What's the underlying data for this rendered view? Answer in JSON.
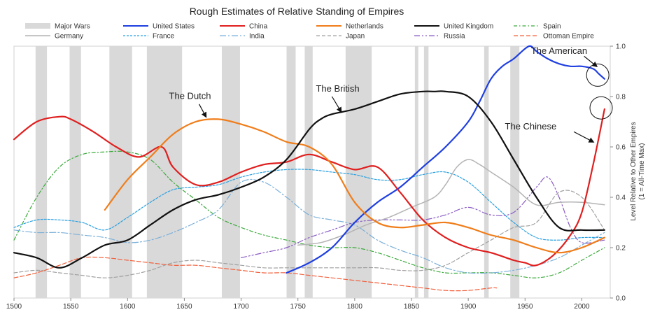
{
  "chart_data": {
    "type": "line",
    "title": "Rough Estimates of Relative Standing of Empires",
    "ylabel_line1": "Level Relative to Other Empires",
    "ylabel_line2": "(1 = All-Time Max)",
    "xlim": [
      1500,
      2025
    ],
    "ylim": [
      0,
      1.0
    ],
    "y_axis_side": "right",
    "grid": false,
    "legend_position": "top",
    "x_ticks": [
      1500,
      1550,
      1600,
      1650,
      1700,
      1750,
      1800,
      1850,
      1900,
      1950,
      2000
    ],
    "x_tick_labels": [
      "1500",
      "1550",
      "1600",
      "1650",
      "1700",
      "1750",
      "1800",
      "1850",
      "1900",
      "1950",
      "2000"
    ],
    "y_ticks": [
      0.0,
      0.2,
      0.4,
      0.6,
      0.8,
      1.0
    ],
    "y_tick_labels": [
      "0.0",
      "0.2",
      "0.4",
      "0.6",
      "0.8",
      "1.0"
    ],
    "war_label": "Major Wars",
    "war_color": "#d9d9d9",
    "wars": [
      [
        1519,
        1529
      ],
      [
        1549,
        1559
      ],
      [
        1584,
        1604
      ],
      [
        1617,
        1648
      ],
      [
        1683,
        1699
      ],
      [
        1740,
        1748
      ],
      [
        1756,
        1763
      ],
      [
        1792,
        1815
      ],
      [
        1853,
        1856
      ],
      [
        1861,
        1865
      ],
      [
        1914,
        1918
      ],
      [
        1937,
        1945
      ]
    ],
    "series": [
      {
        "name": "United States",
        "color": "#1f3fe0",
        "width": 2.2,
        "dash": "",
        "x": [
          1740,
          1760,
          1780,
          1800,
          1820,
          1840,
          1860,
          1880,
          1900,
          1910,
          1920,
          1930,
          1940,
          1950,
          1955,
          1960,
          1970,
          1980,
          1990,
          2000,
          2010,
          2015,
          2020
        ],
        "y": [
          0.1,
          0.14,
          0.2,
          0.3,
          0.38,
          0.44,
          0.52,
          0.6,
          0.7,
          0.78,
          0.87,
          0.92,
          0.95,
          0.99,
          1.0,
          0.98,
          0.95,
          0.93,
          0.92,
          0.92,
          0.91,
          0.89,
          0.87
        ]
      },
      {
        "name": "China",
        "color": "#e01f1f",
        "width": 2.2,
        "dash": "",
        "x": [
          1500,
          1520,
          1540,
          1550,
          1570,
          1590,
          1610,
          1630,
          1640,
          1660,
          1680,
          1700,
          1720,
          1740,
          1760,
          1780,
          1800,
          1820,
          1840,
          1860,
          1880,
          1900,
          1920,
          1940,
          1950,
          1960,
          1975,
          1990,
          2000,
          2010,
          2020
        ],
        "y": [
          0.63,
          0.7,
          0.72,
          0.71,
          0.66,
          0.6,
          0.56,
          0.6,
          0.52,
          0.45,
          0.46,
          0.5,
          0.53,
          0.54,
          0.57,
          0.54,
          0.51,
          0.52,
          0.42,
          0.31,
          0.24,
          0.2,
          0.18,
          0.15,
          0.14,
          0.13,
          0.17,
          0.25,
          0.34,
          0.53,
          0.75
        ]
      },
      {
        "name": "Netherlands",
        "color": "#f07d1a",
        "width": 2.2,
        "dash": "",
        "x": [
          1580,
          1600,
          1620,
          1640,
          1660,
          1680,
          1700,
          1720,
          1740,
          1760,
          1780,
          1800,
          1820,
          1840,
          1860,
          1880,
          1900,
          1920,
          1940,
          1960,
          1980,
          2000,
          2020
        ],
        "y": [
          0.35,
          0.47,
          0.56,
          0.65,
          0.7,
          0.71,
          0.69,
          0.66,
          0.62,
          0.6,
          0.53,
          0.38,
          0.3,
          0.28,
          0.29,
          0.3,
          0.28,
          0.25,
          0.23,
          0.2,
          0.18,
          0.2,
          0.24
        ]
      },
      {
        "name": "United Kingdom",
        "color": "#111111",
        "width": 2.2,
        "dash": "",
        "x": [
          1500,
          1520,
          1540,
          1560,
          1580,
          1600,
          1620,
          1640,
          1660,
          1680,
          1700,
          1720,
          1740,
          1760,
          1770,
          1780,
          1800,
          1820,
          1840,
          1860,
          1870,
          1880,
          1900,
          1920,
          1940,
          1960,
          1980,
          2000,
          2020
        ],
        "y": [
          0.18,
          0.16,
          0.12,
          0.16,
          0.21,
          0.23,
          0.29,
          0.35,
          0.39,
          0.41,
          0.44,
          0.48,
          0.55,
          0.67,
          0.71,
          0.73,
          0.75,
          0.78,
          0.81,
          0.82,
          0.82,
          0.82,
          0.8,
          0.7,
          0.55,
          0.4,
          0.28,
          0.27,
          0.27
        ]
      },
      {
        "name": "Spain",
        "color": "#3caa3c",
        "width": 1.2,
        "dash": "5,3,1.5,3",
        "x": [
          1500,
          1520,
          1540,
          1560,
          1580,
          1600,
          1620,
          1640,
          1660,
          1680,
          1700,
          1720,
          1740,
          1760,
          1780,
          1800,
          1820,
          1840,
          1860,
          1880,
          1900,
          1920,
          1940,
          1960,
          1980,
          2000,
          2020
        ],
        "y": [
          0.23,
          0.4,
          0.52,
          0.57,
          0.58,
          0.58,
          0.55,
          0.46,
          0.39,
          0.32,
          0.28,
          0.25,
          0.23,
          0.21,
          0.2,
          0.2,
          0.18,
          0.15,
          0.12,
          0.1,
          0.1,
          0.1,
          0.09,
          0.08,
          0.1,
          0.15,
          0.2
        ]
      },
      {
        "name": "Germany",
        "color": "#b4b4b4",
        "width": 1.5,
        "dash": "",
        "x": [
          1750,
          1770,
          1790,
          1810,
          1830,
          1850,
          1870,
          1880,
          1890,
          1900,
          1910,
          1920,
          1940,
          1960,
          1980,
          2000,
          2020
        ],
        "y": [
          0.21,
          0.22,
          0.25,
          0.29,
          0.32,
          0.36,
          0.4,
          0.45,
          0.52,
          0.55,
          0.53,
          0.5,
          0.44,
          0.37,
          0.38,
          0.38,
          0.37
        ]
      },
      {
        "name": "France",
        "color": "#2aa0e0",
        "width": 1.2,
        "dash": "3,2",
        "x": [
          1500,
          1520,
          1540,
          1560,
          1580,
          1600,
          1620,
          1640,
          1660,
          1680,
          1700,
          1720,
          1740,
          1760,
          1780,
          1800,
          1820,
          1840,
          1860,
          1880,
          1900,
          1920,
          1940,
          1960,
          1980,
          2000,
          2020
        ],
        "y": [
          0.28,
          0.31,
          0.31,
          0.3,
          0.27,
          0.32,
          0.38,
          0.43,
          0.44,
          0.45,
          0.48,
          0.5,
          0.51,
          0.51,
          0.5,
          0.49,
          0.47,
          0.47,
          0.49,
          0.5,
          0.46,
          0.38,
          0.3,
          0.24,
          0.23,
          0.24,
          0.24
        ]
      },
      {
        "name": "India",
        "color": "#7bb0d9",
        "width": 1.2,
        "dash": "9,3,2,3",
        "x": [
          1500,
          1520,
          1540,
          1560,
          1580,
          1600,
          1620,
          1640,
          1660,
          1680,
          1700,
          1720,
          1740,
          1760,
          1780,
          1800,
          1820,
          1840,
          1860,
          1880,
          1900,
          1920,
          1940,
          1960,
          1980,
          2000,
          2020
        ],
        "y": [
          0.27,
          0.26,
          0.26,
          0.25,
          0.24,
          0.22,
          0.23,
          0.26,
          0.3,
          0.35,
          0.46,
          0.46,
          0.4,
          0.33,
          0.31,
          0.29,
          0.23,
          0.19,
          0.16,
          0.12,
          0.1,
          0.1,
          0.11,
          0.13,
          0.16,
          0.21,
          0.26
        ]
      },
      {
        "name": "Japan",
        "color": "#a0a0a0",
        "width": 1.2,
        "dash": "5,3",
        "x": [
          1500,
          1520,
          1540,
          1560,
          1580,
          1600,
          1620,
          1640,
          1660,
          1680,
          1700,
          1720,
          1740,
          1760,
          1780,
          1800,
          1820,
          1840,
          1860,
          1880,
          1900,
          1920,
          1940,
          1960,
          1980,
          2000,
          2020
        ],
        "y": [
          0.1,
          0.11,
          0.1,
          0.09,
          0.08,
          0.09,
          0.11,
          0.14,
          0.15,
          0.14,
          0.13,
          0.12,
          0.12,
          0.12,
          0.12,
          0.12,
          0.12,
          0.11,
          0.11,
          0.13,
          0.18,
          0.23,
          0.28,
          0.3,
          0.42,
          0.4,
          0.27
        ]
      },
      {
        "name": "Russia",
        "color": "#8a5cc4",
        "width": 1.2,
        "dash": "8,3,2,3,2,3",
        "x": [
          1700,
          1720,
          1740,
          1760,
          1780,
          1800,
          1820,
          1840,
          1860,
          1880,
          1900,
          1920,
          1940,
          1960,
          1970,
          1980,
          1990,
          2000,
          2020
        ],
        "y": [
          0.16,
          0.18,
          0.2,
          0.24,
          0.27,
          0.3,
          0.31,
          0.31,
          0.31,
          0.33,
          0.36,
          0.33,
          0.34,
          0.44,
          0.48,
          0.4,
          0.28,
          0.22,
          0.23
        ]
      },
      {
        "name": "Ottoman Empire",
        "color": "#f2603c",
        "width": 1.2,
        "dash": "6,3",
        "x": [
          1500,
          1520,
          1540,
          1560,
          1580,
          1600,
          1620,
          1640,
          1660,
          1680,
          1700,
          1720,
          1740,
          1760,
          1780,
          1800,
          1820,
          1840,
          1860,
          1880,
          1900,
          1920,
          1925
        ],
        "y": [
          0.08,
          0.1,
          0.13,
          0.16,
          0.16,
          0.15,
          0.14,
          0.13,
          0.13,
          0.12,
          0.11,
          0.1,
          0.1,
          0.09,
          0.08,
          0.07,
          0.06,
          0.05,
          0.04,
          0.03,
          0.03,
          0.04,
          0.04
        ]
      }
    ],
    "annotations": [
      {
        "text": "The Dutch",
        "x": 1655,
        "y": 0.79,
        "arrow_from": [
          1663,
          0.77
        ],
        "arrow_to": [
          1669,
          0.72
        ]
      },
      {
        "text": "The British",
        "x": 1785,
        "y": 0.82,
        "arrow_from": [
          1780,
          0.8
        ],
        "arrow_to": [
          1788,
          0.74
        ]
      },
      {
        "text": "The American",
        "x": 1980,
        "y": 0.97,
        "arrow_from": [
          2002,
          0.96
        ],
        "arrow_to": [
          2013,
          0.92
        ]
      },
      {
        "text": "The Chinese",
        "x": 1955,
        "y": 0.67,
        "arrow_from": [
          1993,
          0.66
        ],
        "arrow_to": [
          2010,
          0.62
        ]
      }
    ],
    "circles": [
      {
        "x": 2014,
        "y": 0.885
      },
      {
        "x": 2017,
        "y": 0.755
      }
    ]
  }
}
